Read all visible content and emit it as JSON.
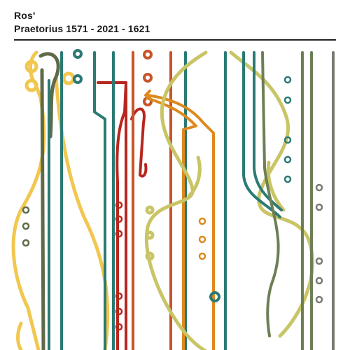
{
  "cover": {
    "artist": "Ros'",
    "title": "Praetorius 1571 - 2021 - 1621"
  },
  "colors": {
    "teal": "#2b7a74",
    "olive": "#5f6b48",
    "yellow": "#f2c74f",
    "khaki": "#c9c566",
    "red": "#b8261e",
    "rust": "#c8552a",
    "orange": "#dd8a1e",
    "gray": "#7a7a72",
    "sage": "#6d7f55"
  }
}
